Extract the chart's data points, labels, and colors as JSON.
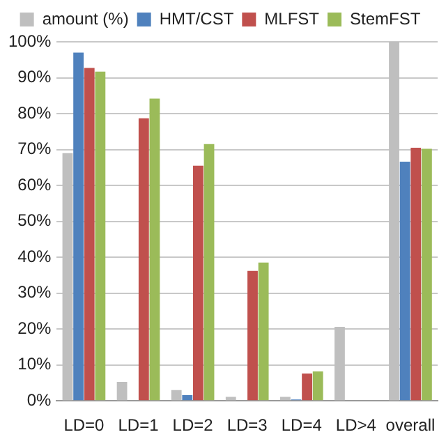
{
  "chart_data": {
    "type": "bar",
    "categories": [
      "LD=0",
      "LD=1",
      "LD=2",
      "LD=3",
      "LD=4",
      "LD>4",
      "overall"
    ],
    "series": [
      {
        "name": "amount (%)",
        "color": "#bfbfbf",
        "values": [
          69,
          5.3,
          3,
          1.1,
          1.1,
          20.6,
          100
        ]
      },
      {
        "name": "HMT/CST",
        "color": "#4f81bd",
        "values": [
          97,
          0.2,
          1.6,
          0.2,
          0.4,
          0.2,
          66.6
        ]
      },
      {
        "name": "MLFST",
        "color": "#c0504d",
        "values": [
          92.7,
          78.7,
          65.5,
          36.2,
          7.6,
          0.2,
          70.5
        ]
      },
      {
        "name": "StemFST",
        "color": "#9bbb59",
        "values": [
          91.7,
          84.2,
          71.5,
          38.5,
          8.2,
          0.2,
          70.2
        ]
      }
    ],
    "ylim": [
      0,
      100
    ],
    "yticks": [
      {
        "value": 0,
        "label": "0%"
      },
      {
        "value": 10,
        "label": "10%"
      },
      {
        "value": 20,
        "label": "20%"
      },
      {
        "value": 30,
        "label": "30%"
      },
      {
        "value": 40,
        "label": "40%"
      },
      {
        "value": 50,
        "label": "50%"
      },
      {
        "value": 60,
        "label": "60%"
      },
      {
        "value": 70,
        "label": "70%"
      },
      {
        "value": 80,
        "label": "80%"
      },
      {
        "value": 90,
        "label": "90%"
      },
      {
        "value": 100,
        "label": "100%"
      }
    ],
    "grid": "y",
    "legend": "top"
  }
}
